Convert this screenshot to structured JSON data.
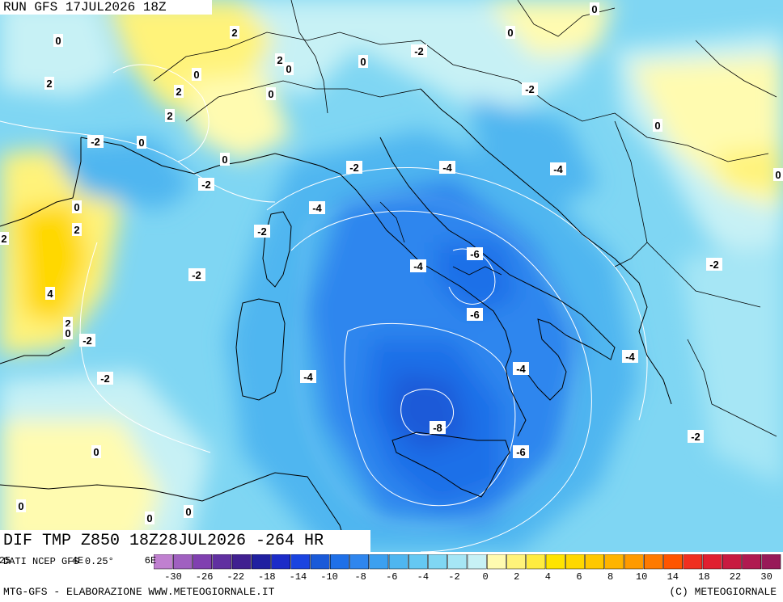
{
  "header": {
    "run": "RUN GFS 17JUL2026 18Z"
  },
  "product": {
    "title": "DIF TMP Z850 18Z28JUL2026 -264 HR"
  },
  "footer": {
    "source": "DATI NCEP GFS 0.25°",
    "credit_left": "MTG-GFS - ELABORAZIONE WWW.METEOGIORNALE.IT",
    "credit_right": "(C) METEOGIORNALE"
  },
  "colors": {
    "neg_deep": "#1a5ad8",
    "neg_mid": "#2f86ee",
    "neg_light": "#4fb6f0",
    "neg_pale": "#7fd6f3",
    "neutral": "#c7f1f5",
    "pos_light": "#fffbb0",
    "pos_mid": "#fff37a",
    "pos_strong": "#ffe400",
    "pos_orange": "#ffc21a",
    "border_color": "#000000",
    "isoline_color": "#ffffff"
  },
  "colorbar": {
    "swatches": [
      "#c080d0",
      "#a060c0",
      "#8040b0",
      "#6030a0",
      "#402090",
      "#2020a0",
      "#1c2cc8",
      "#1a44e0",
      "#1a5ad8",
      "#1f70e8",
      "#2f86ee",
      "#3ba0f0",
      "#4fb6f0",
      "#65c8f2",
      "#7fd6f3",
      "#a6e6f5",
      "#c7f1f5",
      "#fffbb0",
      "#fff37a",
      "#ffec40",
      "#ffe400",
      "#ffd800",
      "#ffc800",
      "#ffb400",
      "#ff9a00",
      "#ff7a00",
      "#ff5500",
      "#f03020",
      "#e02030",
      "#c81a40",
      "#b01a50",
      "#981a58"
    ],
    "tick_labels": [
      "-30",
      "-26",
      "-22",
      "-18",
      "-14",
      "-10",
      "-8",
      "-6",
      "-4",
      "-2",
      "0",
      "2",
      "4",
      "6",
      "8",
      "10",
      "14",
      "18",
      "22",
      "30"
    ],
    "left_partial_labels": [
      "25",
      "4E",
      "6E"
    ]
  },
  "contour_labels": [
    {
      "text": "0",
      "v": 0
    },
    {
      "text": "2",
      "v": 2
    },
    {
      "text": "-2",
      "v": -2
    },
    {
      "text": "0",
      "v": 0
    },
    {
      "text": "0",
      "v": 0
    },
    {
      "text": "0",
      "v": 0
    },
    {
      "text": "2",
      "v": 2
    },
    {
      "text": "0",
      "v": 0
    },
    {
      "text": "-2",
      "v": -2
    },
    {
      "text": "2",
      "v": 2
    },
    {
      "text": "0",
      "v": 0
    },
    {
      "text": "-2",
      "v": -2
    },
    {
      "text": "2",
      "v": 2
    },
    {
      "text": "0",
      "v": 0
    },
    {
      "text": "2",
      "v": 2
    },
    {
      "text": "0",
      "v": 0
    },
    {
      "text": "-2",
      "v": -2
    },
    {
      "text": "0",
      "v": 0
    },
    {
      "text": "0",
      "v": 0
    },
    {
      "text": "-2",
      "v": -2
    },
    {
      "text": "-4",
      "v": -4
    },
    {
      "text": "-4",
      "v": -4
    },
    {
      "text": "-2",
      "v": -2
    },
    {
      "text": "0",
      "v": 0
    },
    {
      "text": "0",
      "v": 0
    },
    {
      "text": "-4",
      "v": -4
    },
    {
      "text": "2",
      "v": 2
    },
    {
      "text": "-2",
      "v": -2
    },
    {
      "text": "2",
      "v": 2
    },
    {
      "text": "-2",
      "v": -2
    },
    {
      "text": "-4",
      "v": -4
    },
    {
      "text": "-6",
      "v": -6
    },
    {
      "text": "-2",
      "v": -2
    },
    {
      "text": "4",
      "v": 4
    },
    {
      "text": "-6",
      "v": -6
    },
    {
      "text": "2",
      "v": 2
    },
    {
      "text": "0",
      "v": 0
    },
    {
      "text": "-2",
      "v": -2
    },
    {
      "text": "-4",
      "v": -4
    },
    {
      "text": "-4",
      "v": -4
    },
    {
      "text": "-2",
      "v": -2
    },
    {
      "text": "-4",
      "v": -4
    },
    {
      "text": "-8",
      "v": -8
    },
    {
      "text": "0",
      "v": 0
    },
    {
      "text": "-6",
      "v": -6
    },
    {
      "text": "-2",
      "v": -2
    },
    {
      "text": "0",
      "v": 0
    },
    {
      "text": "0",
      "v": 0
    },
    {
      "text": "0",
      "v": 0
    }
  ]
}
